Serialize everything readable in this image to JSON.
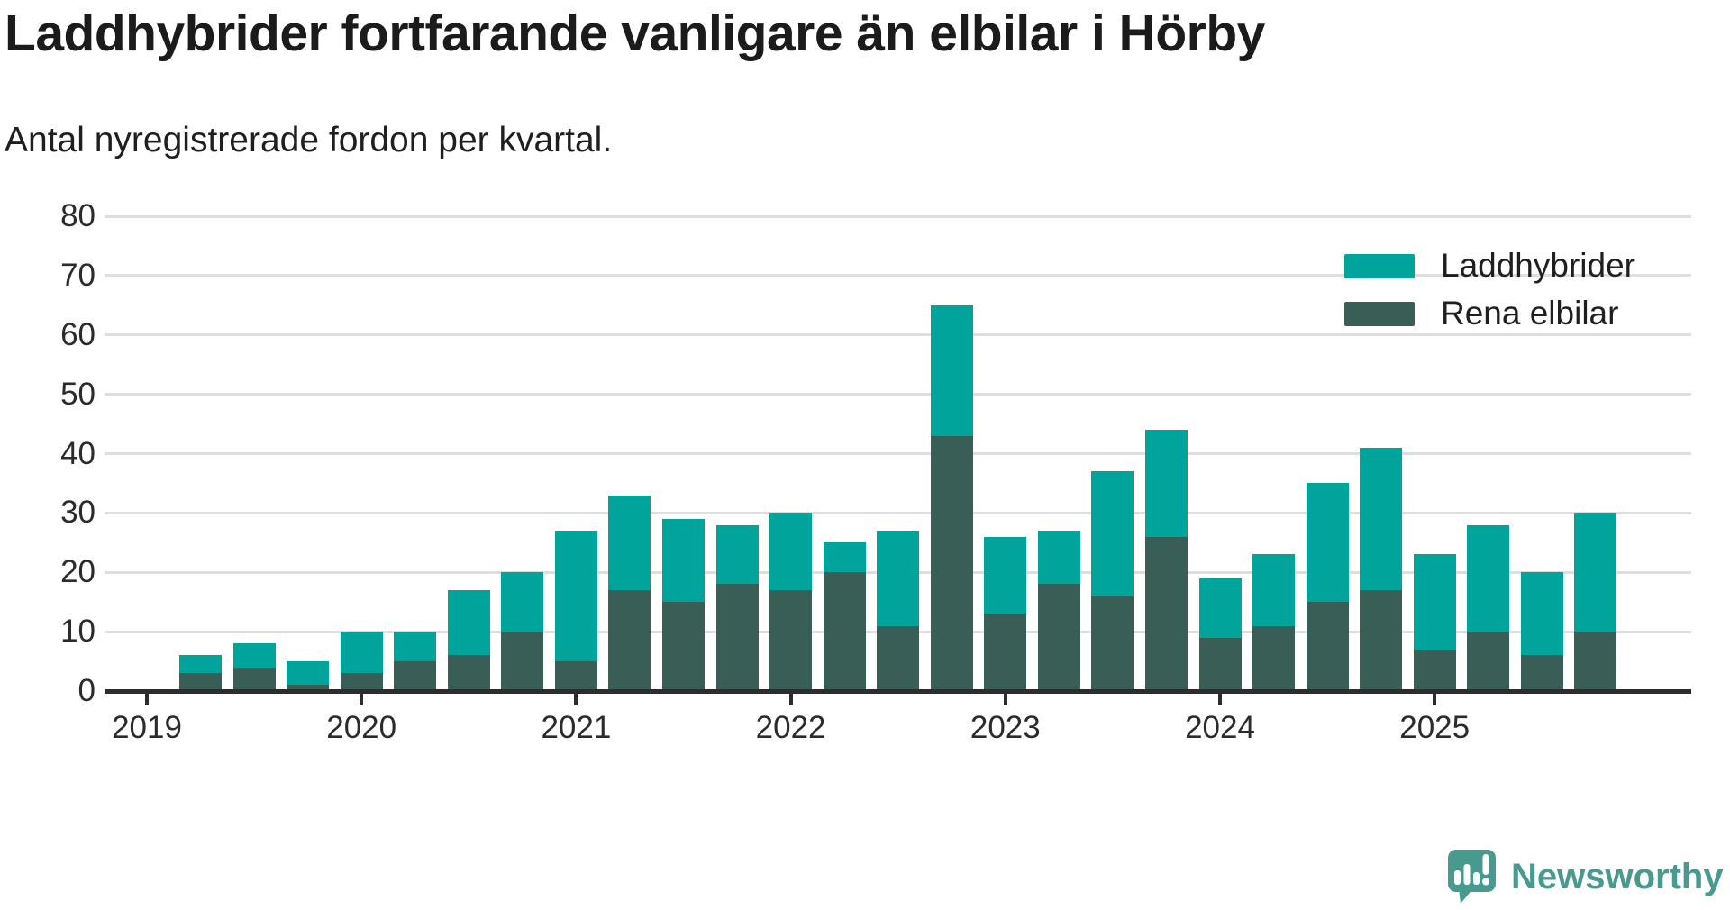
{
  "header": {
    "title": "Laddhybrider fortfarande vanligare än elbilar i Hörby",
    "subtitle": "Antal nyregistrerade fordon per kvartal."
  },
  "legend": {
    "items": [
      {
        "label": "Laddhybrider",
        "color": "#00a49b"
      },
      {
        "label": "Rena elbilar",
        "color": "#385e55"
      }
    ]
  },
  "footer": {
    "brand": "Newsworthy",
    "logo_icon": "newsworthy-speech-bubble-chart-icon",
    "brand_color": "#489a8e"
  },
  "colors": {
    "laddhybrider": "#00a49b",
    "rena_elbilar": "#385e55",
    "axis": "#2f2d2b",
    "gridline": "#dedede",
    "text": "#1f1f1f"
  },
  "chart_data": {
    "type": "bar",
    "stacked": true,
    "title": "Laddhybrider fortfarande vanligare än elbilar i Hörby",
    "subtitle": "Antal nyregistrerade fordon per kvartal.",
    "xlabel": "",
    "ylabel": "",
    "ylim": [
      0,
      80
    ],
    "yticks": [
      0,
      10,
      20,
      30,
      40,
      50,
      60,
      70,
      80
    ],
    "grid": "horizontal",
    "legend_position": "top-right",
    "categories": [
      "2019 Q1",
      "2019 Q2",
      "2019 Q3",
      "2019 Q4",
      "2020 Q1",
      "2020 Q2",
      "2020 Q3",
      "2020 Q4",
      "2021 Q1",
      "2021 Q2",
      "2021 Q3",
      "2021 Q4",
      "2022 Q1",
      "2022 Q2",
      "2022 Q3",
      "2022 Q4",
      "2023 Q1",
      "2023 Q2",
      "2023 Q3",
      "2023 Q4",
      "2024 Q1",
      "2024 Q2",
      "2024 Q3",
      "2024 Q4",
      "2025 Q1",
      "2025 Q2",
      "2025 Q3",
      "2025 Q4"
    ],
    "x_tick_labels": [
      "2019",
      "2020",
      "2021",
      "2022",
      "2023",
      "2024",
      "2025"
    ],
    "series": [
      {
        "name": "Laddhybrider",
        "color": "#00a49b",
        "values": [
          0,
          3,
          4,
          4,
          7,
          5,
          11,
          10,
          22,
          16,
          14,
          10,
          13,
          5,
          16,
          22,
          13,
          9,
          21,
          18,
          10,
          12,
          20,
          24,
          16,
          18,
          14,
          20
        ]
      },
      {
        "name": "Rena elbilar",
        "color": "#385e55",
        "values": [
          0,
          3,
          4,
          1,
          3,
          5,
          6,
          10,
          5,
          17,
          15,
          18,
          17,
          20,
          11,
          43,
          13,
          18,
          16,
          26,
          9,
          11,
          15,
          17,
          7,
          10,
          6,
          10
        ]
      }
    ],
    "stack_order_bottom_to_top": [
      "Rena elbilar",
      "Laddhybrider"
    ],
    "stacked_totals": [
      0,
      6,
      8,
      5,
      10,
      10,
      17,
      20,
      27,
      33,
      29,
      28,
      30,
      25,
      27,
      65,
      26,
      27,
      37,
      44,
      19,
      23,
      35,
      41,
      23,
      28,
      20,
      30
    ]
  }
}
